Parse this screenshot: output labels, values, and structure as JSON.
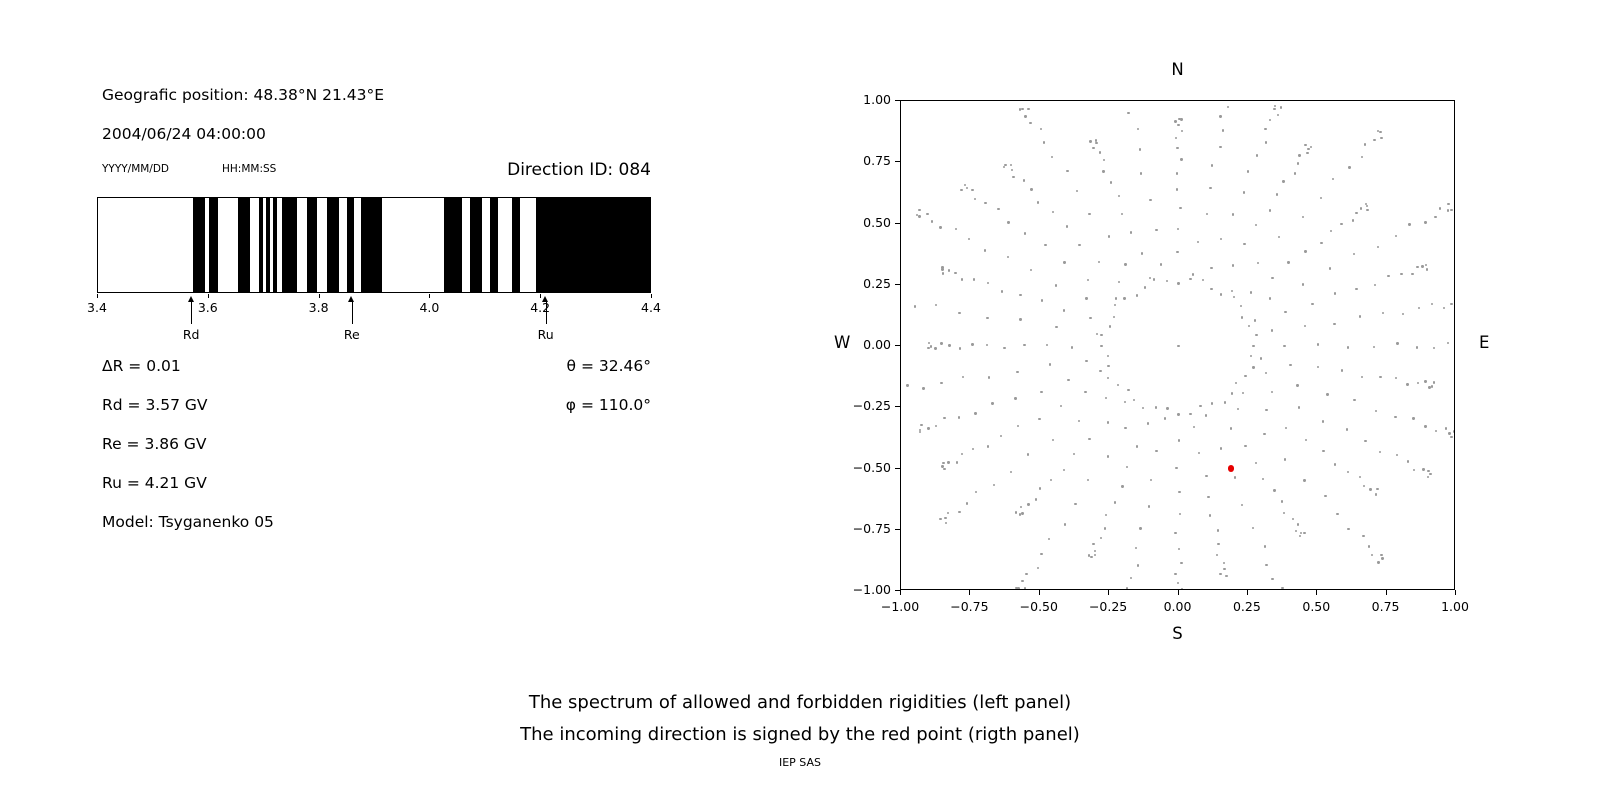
{
  "left_panel": {
    "position_line": "Geografic position: 48.38°N 21.43°E",
    "datetime_line": "2004/06/24 04:00:00",
    "date_format_label": "YYYY/MM/DD",
    "time_format_label": "HH:MM:SS",
    "direction_id_label": "Direction ID: 084",
    "params": {
      "delta_r": "ΔR = 0.01",
      "rd": "Rd = 3.57 GV",
      "re": "Re = 3.86 GV",
      "ru": "Ru = 4.21 GV",
      "model": "Model: Tsyganenko 05",
      "theta": "θ = 32.46°",
      "phi": "φ = 110.0°"
    }
  },
  "chart_data": [
    {
      "type": "bar",
      "name": "rigidity-spectrum-barcode",
      "description": "Spectrum of allowed (black) and forbidden (white) rigidities",
      "xlim": [
        3.4,
        4.4
      ],
      "xtick_values": [
        3.4,
        3.6,
        3.8,
        4.0,
        4.2,
        4.4
      ],
      "xtick_labels": [
        "3.4",
        "3.6",
        "3.8",
        "4.0",
        "4.2",
        "4.4"
      ],
      "bar_color": "#000000",
      "allowed_bands_gv": [
        [
          3.571,
          3.593
        ],
        [
          3.6,
          3.617
        ],
        [
          3.653,
          3.674
        ],
        [
          3.691,
          3.698
        ],
        [
          3.703,
          3.71
        ],
        [
          3.716,
          3.723
        ],
        [
          3.732,
          3.759
        ],
        [
          3.777,
          3.795
        ],
        [
          3.813,
          3.835
        ],
        [
          3.849,
          3.862
        ],
        [
          3.875,
          3.913
        ],
        [
          4.025,
          4.057
        ],
        [
          4.071,
          4.093
        ],
        [
          4.108,
          4.122
        ],
        [
          4.147,
          4.162
        ],
        [
          4.19,
          4.4
        ]
      ],
      "markers": [
        {
          "label": "Rd",
          "value_gv": 3.57
        },
        {
          "label": "Re",
          "value_gv": 3.86
        },
        {
          "label": "Ru",
          "value_gv": 4.21
        }
      ]
    },
    {
      "type": "scatter",
      "name": "incoming-direction-plot",
      "xlim": [
        -1,
        1
      ],
      "ylim": [
        -1,
        1
      ],
      "xtick_values": [
        -1,
        -0.75,
        -0.5,
        -0.25,
        0,
        0.25,
        0.5,
        0.75,
        1
      ],
      "xtick_labels": [
        "−1.00",
        "−0.75",
        "−0.50",
        "−0.25",
        "0.00",
        "0.25",
        "0.50",
        "0.75",
        "1.00"
      ],
      "ytick_values": [
        1,
        0.75,
        0.5,
        0.25,
        0,
        -0.25,
        -0.5,
        -0.75,
        -1
      ],
      "ytick_labels": [
        "1.00",
        "0.75",
        "0.50",
        "0.25",
        "0.00",
        "−0.25",
        "−0.50",
        "−0.75",
        "−1.00"
      ],
      "direction_labels": {
        "top": "N",
        "bottom": "S",
        "left": "W",
        "right": "E"
      },
      "dot_color": "#9a9a9a",
      "red_color": "#e60000",
      "red_point": [
        0.19,
        -0.5
      ],
      "gray_dots": {
        "pattern": "radial spokes of gray dots with inner ring and center dot",
        "spoke_count": 36,
        "dots_per_spoke": 13,
        "spoke_r_start": 0.34,
        "spoke_r_end": 1.02,
        "ring_radius": 0.27,
        "ring_count": 40,
        "center_dot": true
      }
    }
  ],
  "caption": {
    "line1": "The spectrum of allowed and forbidden rigidities (left panel)",
    "line2": "The incoming direction is signed by the red point (rigth panel)",
    "credit": "IEP SAS"
  }
}
